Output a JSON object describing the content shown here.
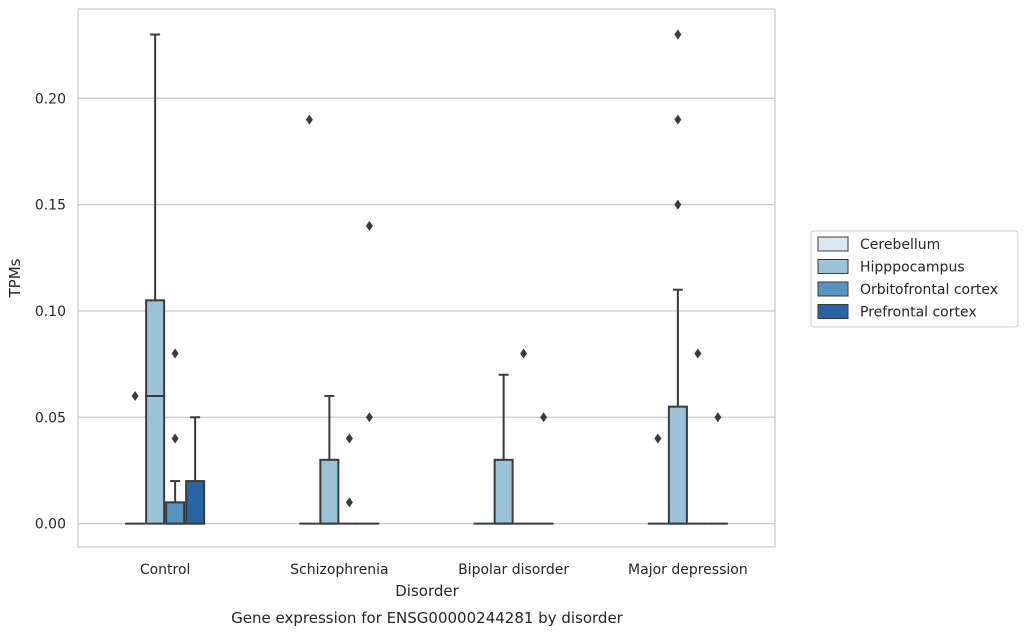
{
  "chart_data": {
    "type": "box",
    "caption": "Gene expression for ENSG00000244281 by disorder",
    "xlabel": "Disorder",
    "ylabel": "TPMs",
    "ylim": [
      -0.011,
      0.242
    ],
    "yticks": [
      0.0,
      0.05,
      0.1,
      0.15,
      0.2
    ],
    "ytick_labels": [
      "0.00",
      "0.05",
      "0.10",
      "0.15",
      "0.20"
    ],
    "grid": "horizontal",
    "legend": {
      "placement": "right",
      "entries": [
        {
          "label": "Cerebellum",
          "color": "#dbe8f4"
        },
        {
          "label": "Hipppocampus",
          "color": "#9cc2da"
        },
        {
          "label": "Orbitofrontal cortex",
          "color": "#5693bf"
        },
        {
          "label": "Prefrontal cortex",
          "color": "#2a63a3"
        }
      ]
    },
    "categories": [
      "Control",
      "Schizophrenia",
      "Bipolar disorder",
      "Major depression"
    ],
    "groups": [
      {
        "category": "Control",
        "boxes": [
          {
            "series": "Cerebellum",
            "q1": 0,
            "median": 0,
            "q3": 0,
            "whisker_low": 0,
            "whisker_high": 0,
            "outliers": [
              0.06
            ]
          },
          {
            "series": "Hipppocampus",
            "q1": 0,
            "median": 0.06,
            "q3": 0.105,
            "whisker_low": 0,
            "whisker_high": 0.23,
            "outliers": []
          },
          {
            "series": "Orbitofrontal cortex",
            "q1": 0,
            "median": 0,
            "q3": 0.01,
            "whisker_low": 0,
            "whisker_high": 0.02,
            "outliers": [
              0.04,
              0.08
            ]
          },
          {
            "series": "Prefrontal cortex",
            "q1": 0,
            "median": 0,
            "q3": 0.02,
            "whisker_low": 0,
            "whisker_high": 0.05,
            "outliers": []
          }
        ]
      },
      {
        "category": "Schizophrenia",
        "boxes": [
          {
            "series": "Cerebellum",
            "q1": 0,
            "median": 0,
            "q3": 0,
            "whisker_low": 0,
            "whisker_high": 0,
            "outliers": [
              0.19
            ]
          },
          {
            "series": "Hipppocampus",
            "q1": 0,
            "median": 0,
            "q3": 0.03,
            "whisker_low": 0,
            "whisker_high": 0.06,
            "outliers": []
          },
          {
            "series": "Orbitofrontal cortex",
            "q1": 0,
            "median": 0,
            "q3": 0,
            "whisker_low": 0,
            "whisker_high": 0,
            "outliers": [
              0.01,
              0.04
            ]
          },
          {
            "series": "Prefrontal cortex",
            "q1": 0,
            "median": 0,
            "q3": 0,
            "whisker_low": 0,
            "whisker_high": 0,
            "outliers": [
              0.05,
              0.14
            ]
          }
        ]
      },
      {
        "category": "Bipolar disorder",
        "boxes": [
          {
            "series": "Cerebellum",
            "q1": 0,
            "median": 0,
            "q3": 0,
            "whisker_low": 0,
            "whisker_high": 0,
            "outliers": []
          },
          {
            "series": "Hipppocampus",
            "q1": 0,
            "median": 0,
            "q3": 0.03,
            "whisker_low": 0,
            "whisker_high": 0.07,
            "outliers": []
          },
          {
            "series": "Orbitofrontal cortex",
            "q1": 0,
            "median": 0,
            "q3": 0,
            "whisker_low": 0,
            "whisker_high": 0,
            "outliers": [
              0.08
            ]
          },
          {
            "series": "Prefrontal cortex",
            "q1": 0,
            "median": 0,
            "q3": 0,
            "whisker_low": 0,
            "whisker_high": 0,
            "outliers": [
              0.05
            ]
          }
        ]
      },
      {
        "category": "Major depression",
        "boxes": [
          {
            "series": "Cerebellum",
            "q1": 0,
            "median": 0,
            "q3": 0,
            "whisker_low": 0,
            "whisker_high": 0,
            "outliers": [
              0.04
            ]
          },
          {
            "series": "Hipppocampus",
            "q1": 0,
            "median": 0,
            "q3": 0.055,
            "whisker_low": 0,
            "whisker_high": 0.11,
            "outliers": [
              0.15,
              0.19,
              0.23
            ]
          },
          {
            "series": "Orbitofrontal cortex",
            "q1": 0,
            "median": 0,
            "q3": 0,
            "whisker_low": 0,
            "whisker_high": 0,
            "outliers": [
              0.08
            ]
          },
          {
            "series": "Prefrontal cortex",
            "q1": 0,
            "median": 0,
            "q3": 0,
            "whisker_low": 0,
            "whisker_high": 0,
            "outliers": [
              0.05
            ]
          }
        ]
      }
    ]
  }
}
